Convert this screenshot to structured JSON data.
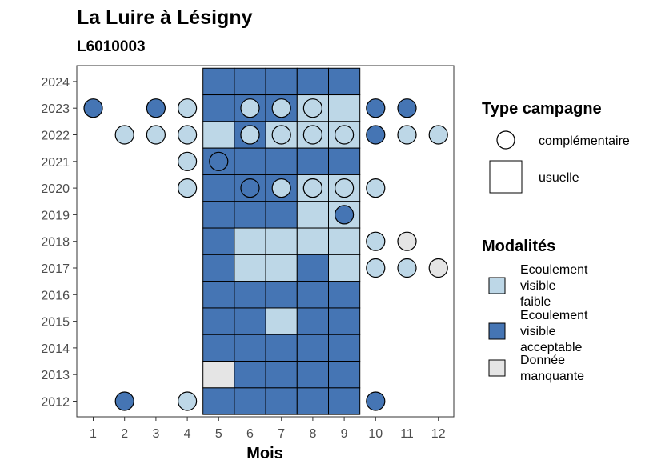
{
  "chart_data": {
    "type": "heatmap",
    "title": "La Luire à Lésigny",
    "subtitle": "L6010003",
    "xlabel": "Mois",
    "ylabel": "",
    "x_ticks": [
      1,
      2,
      3,
      4,
      5,
      6,
      7,
      8,
      9,
      10,
      11,
      12
    ],
    "y_ticks": [
      2012,
      2013,
      2014,
      2015,
      2016,
      2017,
      2018,
      2019,
      2020,
      2021,
      2022,
      2023,
      2024
    ],
    "colors": {
      "faible": "#bdd7e7",
      "acceptable": "#4575b4",
      "manquante": "#e5e5e5"
    },
    "legend_type": {
      "title": "Type campagne",
      "items": [
        {
          "shape": "circle",
          "label": "complémentaire"
        },
        {
          "shape": "square",
          "label": "usuelle"
        }
      ]
    },
    "legend_modalites": {
      "title": "Modalités",
      "items": [
        {
          "key": "faible",
          "lines": [
            "Ecoulement",
            "visible",
            "faible"
          ]
        },
        {
          "key": "acceptable",
          "lines": [
            "Ecoulement",
            "visible",
            "acceptable"
          ]
        },
        {
          "key": "manquante",
          "lines": [
            "Donnée",
            "manquante"
          ]
        }
      ]
    },
    "usuelle": [
      [
        5,
        2024,
        "acceptable"
      ],
      [
        6,
        2024,
        "acceptable"
      ],
      [
        7,
        2024,
        "acceptable"
      ],
      [
        8,
        2024,
        "acceptable"
      ],
      [
        9,
        2024,
        "acceptable"
      ],
      [
        5,
        2023,
        "acceptable"
      ],
      [
        6,
        2023,
        "acceptable"
      ],
      [
        7,
        2023,
        "acceptable"
      ],
      [
        8,
        2023,
        "faible"
      ],
      [
        9,
        2023,
        "faible"
      ],
      [
        5,
        2022,
        "faible"
      ],
      [
        6,
        2022,
        "acceptable"
      ],
      [
        7,
        2022,
        "faible"
      ],
      [
        8,
        2022,
        "faible"
      ],
      [
        9,
        2022,
        "faible"
      ],
      [
        5,
        2021,
        "acceptable"
      ],
      [
        6,
        2021,
        "acceptable"
      ],
      [
        7,
        2021,
        "acceptable"
      ],
      [
        8,
        2021,
        "acceptable"
      ],
      [
        9,
        2021,
        "acceptable"
      ],
      [
        5,
        2020,
        "acceptable"
      ],
      [
        6,
        2020,
        "acceptable"
      ],
      [
        7,
        2020,
        "acceptable"
      ],
      [
        8,
        2020,
        "faible"
      ],
      [
        9,
        2020,
        "faible"
      ],
      [
        5,
        2019,
        "acceptable"
      ],
      [
        6,
        2019,
        "acceptable"
      ],
      [
        7,
        2019,
        "acceptable"
      ],
      [
        8,
        2019,
        "faible"
      ],
      [
        9,
        2019,
        "faible"
      ],
      [
        5,
        2018,
        "acceptable"
      ],
      [
        6,
        2018,
        "faible"
      ],
      [
        7,
        2018,
        "faible"
      ],
      [
        8,
        2018,
        "faible"
      ],
      [
        9,
        2018,
        "faible"
      ],
      [
        5,
        2017,
        "acceptable"
      ],
      [
        6,
        2017,
        "faible"
      ],
      [
        7,
        2017,
        "faible"
      ],
      [
        8,
        2017,
        "acceptable"
      ],
      [
        9,
        2017,
        "faible"
      ],
      [
        5,
        2016,
        "acceptable"
      ],
      [
        6,
        2016,
        "acceptable"
      ],
      [
        7,
        2016,
        "acceptable"
      ],
      [
        8,
        2016,
        "acceptable"
      ],
      [
        9,
        2016,
        "acceptable"
      ],
      [
        5,
        2015,
        "acceptable"
      ],
      [
        6,
        2015,
        "acceptable"
      ],
      [
        7,
        2015,
        "faible"
      ],
      [
        8,
        2015,
        "acceptable"
      ],
      [
        9,
        2015,
        "acceptable"
      ],
      [
        5,
        2014,
        "acceptable"
      ],
      [
        6,
        2014,
        "acceptable"
      ],
      [
        7,
        2014,
        "acceptable"
      ],
      [
        8,
        2014,
        "acceptable"
      ],
      [
        9,
        2014,
        "acceptable"
      ],
      [
        5,
        2013,
        "manquante"
      ],
      [
        6,
        2013,
        "acceptable"
      ],
      [
        7,
        2013,
        "acceptable"
      ],
      [
        8,
        2013,
        "acceptable"
      ],
      [
        9,
        2013,
        "acceptable"
      ],
      [
        5,
        2012,
        "acceptable"
      ],
      [
        6,
        2012,
        "acceptable"
      ],
      [
        7,
        2012,
        "acceptable"
      ],
      [
        8,
        2012,
        "acceptable"
      ],
      [
        9,
        2012,
        "acceptable"
      ]
    ],
    "complementaire": [
      [
        1,
        2023,
        "acceptable"
      ],
      [
        3,
        2023,
        "acceptable"
      ],
      [
        4,
        2023,
        "faible"
      ],
      [
        6,
        2023,
        "faible"
      ],
      [
        7,
        2023,
        "faible"
      ],
      [
        8,
        2023,
        "faible"
      ],
      [
        10,
        2023,
        "acceptable"
      ],
      [
        11,
        2023,
        "acceptable"
      ],
      [
        2,
        2022,
        "faible"
      ],
      [
        3,
        2022,
        "faible"
      ],
      [
        4,
        2022,
        "faible"
      ],
      [
        6,
        2022,
        "faible"
      ],
      [
        6,
        2022,
        "faible"
      ],
      [
        7,
        2022,
        "faible"
      ],
      [
        8,
        2022,
        "faible"
      ],
      [
        9,
        2022,
        "faible"
      ],
      [
        10,
        2022,
        "acceptable"
      ],
      [
        11,
        2022,
        "faible"
      ],
      [
        12,
        2022,
        "faible"
      ],
      [
        4,
        2021,
        "faible"
      ],
      [
        5,
        2021,
        "acceptable"
      ],
      [
        4,
        2020,
        "faible"
      ],
      [
        6,
        2020,
        "acceptable"
      ],
      [
        7,
        2020,
        "faible"
      ],
      [
        8,
        2020,
        "faible"
      ],
      [
        8,
        2020,
        "faible"
      ],
      [
        9,
        2020,
        "faible"
      ],
      [
        10,
        2020,
        "faible"
      ],
      [
        9,
        2019,
        "acceptable"
      ],
      [
        10,
        2018,
        "faible"
      ],
      [
        11,
        2018,
        "manquante"
      ],
      [
        10,
        2017,
        "faible"
      ],
      [
        11,
        2017,
        "faible"
      ],
      [
        12,
        2017,
        "manquante"
      ],
      [
        2,
        2012,
        "acceptable"
      ],
      [
        4,
        2012,
        "faible"
      ],
      [
        10,
        2012,
        "acceptable"
      ]
    ]
  }
}
